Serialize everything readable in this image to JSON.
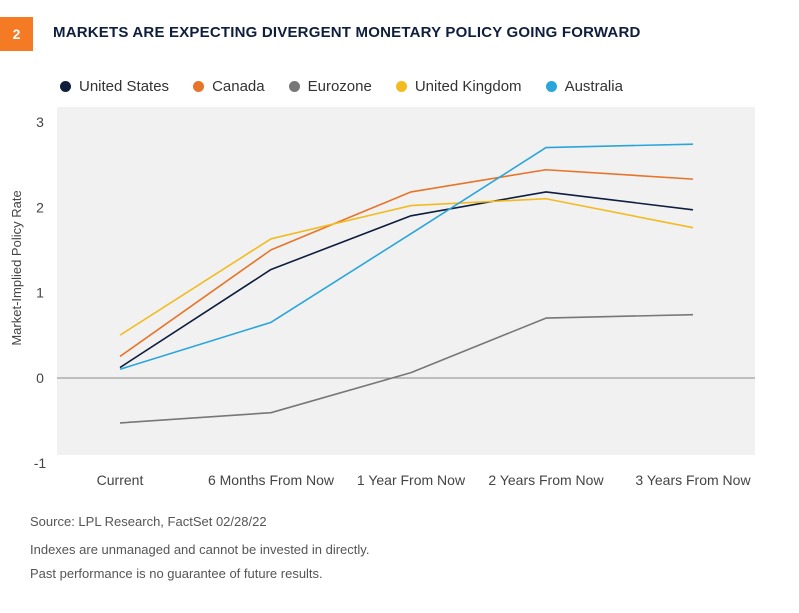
{
  "header": {
    "figure_number": "2",
    "title": "MARKETS ARE EXPECTING DIVERGENT MONETARY POLICY GOING FORWARD"
  },
  "chart_data": {
    "type": "line",
    "categories": [
      "Current",
      "6 Months From Now",
      "1 Year From Now",
      "2 Years From Now",
      "3 Years From Now"
    ],
    "ylabel": "Market-Implied Policy Rate",
    "ylim": [
      -1,
      3
    ],
    "yticks": [
      "-1",
      "0",
      "1",
      "2",
      "3"
    ],
    "grid": false,
    "zero_line": true,
    "legend_position": "top",
    "series": [
      {
        "name": "United States",
        "color": "#0f1e3d",
        "values": [
          0.12,
          1.27,
          1.9,
          2.18,
          1.97
        ]
      },
      {
        "name": "Canada",
        "color": "#e8742a",
        "values": [
          0.25,
          1.5,
          2.18,
          2.44,
          2.33
        ]
      },
      {
        "name": "Eurozone",
        "color": "#777777",
        "values": [
          -0.53,
          -0.41,
          0.06,
          0.7,
          0.74
        ]
      },
      {
        "name": "United Kingdom",
        "color": "#f2bb1f",
        "values": [
          0.5,
          1.63,
          2.02,
          2.1,
          1.76
        ]
      },
      {
        "name": "Australia",
        "color": "#2aa5dc",
        "values": [
          0.1,
          0.65,
          1.69,
          2.7,
          2.74
        ]
      }
    ]
  },
  "footer": {
    "source": "Source: LPL Research, FactSet  02/28/22",
    "note1": "Indexes are unmanaged and cannot be invested in directly.",
    "note2": "Past performance is no guarantee of future results."
  }
}
